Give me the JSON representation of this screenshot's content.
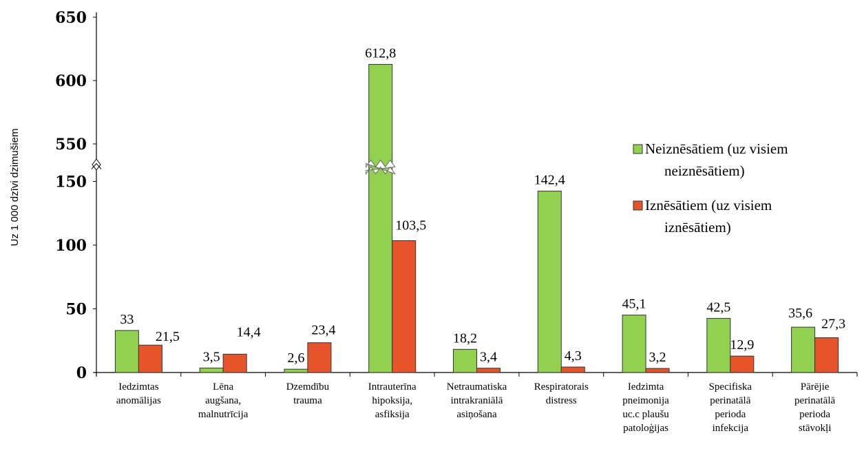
{
  "chart_data": {
    "type": "bar",
    "ylabel": "Uz 1 000 dzīvi dzimušiem",
    "ylim": [
      0,
      650
    ],
    "axis_break": {
      "from": 150,
      "to": 550
    },
    "y_ticks": [
      "0",
      "50",
      "100",
      "150",
      "550",
      "600",
      "650"
    ],
    "legend_position": "right",
    "categories": [
      [
        "Iedzimtas",
        "anomālijas"
      ],
      [
        "Lēna",
        "augšana,",
        "malnutrīcija"
      ],
      [
        "Dzemdību",
        "trauma"
      ],
      [
        "Intrauterīna",
        "hipoksija,",
        "asfiksija"
      ],
      [
        "Netraumatiska",
        "intrakraniālā",
        "asiņošana"
      ],
      [
        "Respiratorais",
        "distress"
      ],
      [
        "Iedzimta",
        "pneimonija",
        "uc.c plaušu",
        "patoloģijas"
      ],
      [
        "Specifiska",
        "perinatālā",
        "perioda",
        "infekcija"
      ],
      [
        "Pārējie",
        "perinatālā",
        "perioda",
        "stāvokļi"
      ]
    ],
    "series": [
      {
        "name": "Neiznēsātiem (uz visiem neiznēsātiem)",
        "legend_lines": [
          "Neiznēsātiem (uz visiem",
          "neiznēsātiem)"
        ],
        "color": "#92d050",
        "values": [
          33,
          3.5,
          2.6,
          612.8,
          18.2,
          142.4,
          45.1,
          42.5,
          35.6
        ],
        "labels": [
          "33",
          "3,5",
          "2,6",
          "612,8",
          "18,2",
          "142,4",
          "45,1",
          "42,5",
          "35,6"
        ]
      },
      {
        "name": "Iznēsātiem (uz visiem iznēsātiem)",
        "legend_lines": [
          "Iznēsātiem (uz visiem",
          "iznēsātiem)"
        ],
        "color": "#e8542a",
        "values": [
          21.5,
          14.4,
          23.4,
          103.5,
          3.4,
          4.3,
          3.2,
          12.9,
          27.3
        ],
        "labels": [
          "21,5",
          "14,4",
          "23,4",
          "103,5",
          "3,4",
          "4,3",
          "3,2",
          "12,9",
          "27,3"
        ]
      }
    ]
  }
}
